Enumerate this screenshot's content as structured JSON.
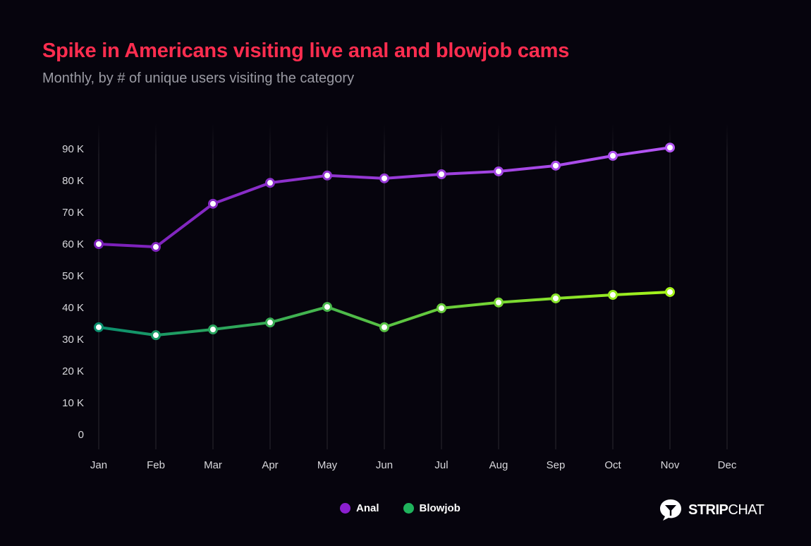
{
  "header": {
    "title": "Spike in Americans visiting live anal and blowjob cams",
    "subtitle": "Monthly, by # of unique users visiting the category"
  },
  "colors": {
    "background": "#06040d",
    "title": "#ff2d4f",
    "subtitle": "#9a9aa3",
    "grid": "#2a2830",
    "tick_label": "#d8d8dc",
    "anal_start": "#7a1fb8",
    "anal_end": "#b455f5",
    "blowjob_start": "#0a8f6e",
    "blowjob_end": "#a6f51a"
  },
  "legend": {
    "items": [
      {
        "label": "Anal",
        "color": "#8b1fcf"
      },
      {
        "label": "Blowjob",
        "color": "#1fb35c"
      }
    ]
  },
  "brand": {
    "name_bold": "STRIP",
    "name_light": "CHAT",
    "icon": "chat-bubble-glass-icon"
  },
  "chart_data": {
    "type": "line",
    "title": "Spike in Americans visiting live anal and blowjob cams",
    "subtitle": "Monthly, by # of unique users visiting the category",
    "xlabel": "",
    "ylabel": "",
    "categories": [
      "Jan",
      "Feb",
      "Mar",
      "Apr",
      "May",
      "Jun",
      "Jul",
      "Aug",
      "Sep",
      "Oct",
      "Nov",
      "Dec"
    ],
    "y_ticks": [
      0,
      10000,
      20000,
      30000,
      40000,
      50000,
      60000,
      70000,
      80000,
      90000
    ],
    "y_tick_labels": [
      "0",
      "10 K",
      "20 K",
      "30 K",
      "40 K",
      "50 K",
      "60 K",
      "70 K",
      "80 K",
      "90 K"
    ],
    "ylim": [
      -4700,
      95000
    ],
    "grid": true,
    "legend_position": "bottom-center",
    "series": [
      {
        "name": "Anal",
        "values": [
          60000,
          59100,
          72700,
          79300,
          81600,
          80700,
          82000,
          82900,
          84700,
          87800,
          90400,
          null
        ]
      },
      {
        "name": "Blowjob",
        "values": [
          33800,
          31300,
          33100,
          35300,
          40200,
          33800,
          39800,
          41600,
          42900,
          44000,
          44900,
          null
        ]
      }
    ]
  }
}
